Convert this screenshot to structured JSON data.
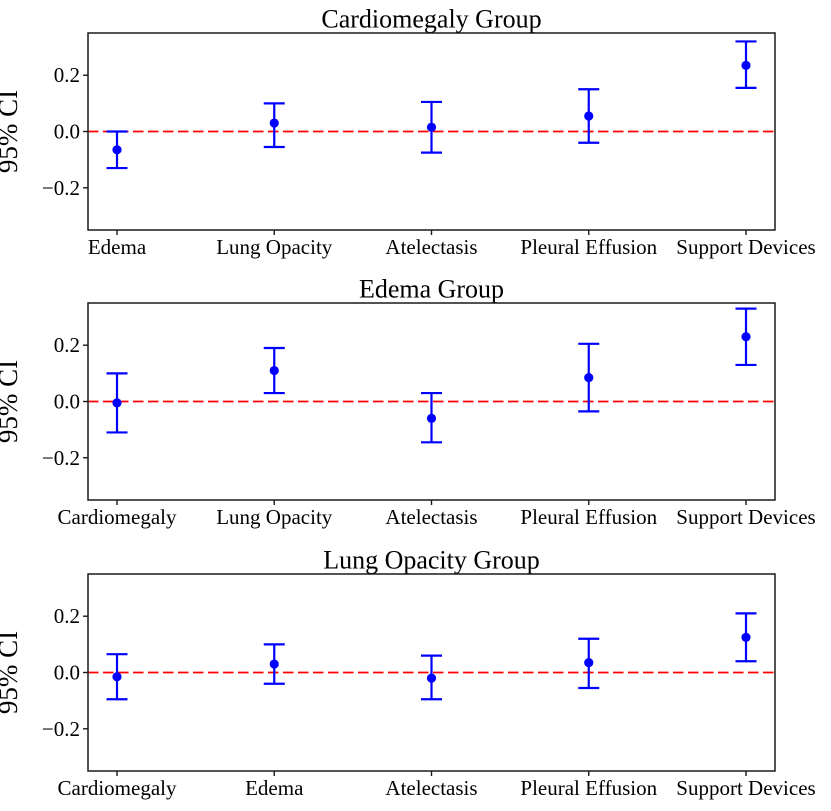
{
  "figure": {
    "background": "#ffffff",
    "text_color": "#000000"
  },
  "chart_data": [
    {
      "type": "scatter",
      "title": "Cardiomegaly Group",
      "ylabel": "95% CI",
      "xlabel": "",
      "categories": [
        "Edema",
        "Lung Opacity",
        "Atelectasis",
        "Pleural Effusion",
        "Support Devices"
      ],
      "series": [
        {
          "name": "point estimate with 95% CI",
          "values": [
            -0.065,
            0.03,
            0.015,
            0.055,
            0.235
          ],
          "ci_low": [
            -0.13,
            -0.055,
            -0.075,
            -0.04,
            0.155
          ],
          "ci_high": [
            0.0,
            0.1,
            0.105,
            0.15,
            0.32
          ]
        }
      ],
      "ylim": [
        -0.35,
        0.35
      ],
      "yticks": [
        -0.2,
        0.0,
        0.2
      ],
      "ytick_labels": [
        "−0.2",
        "0.0",
        "0.2"
      ],
      "refline_y": 0.0,
      "grid": false,
      "legend": false,
      "colors": {
        "point": "#0000ff",
        "refline": "#ff0000",
        "axis": "#1a1a1a"
      }
    },
    {
      "type": "scatter",
      "title": "Edema Group",
      "ylabel": "95% CI",
      "xlabel": "",
      "categories": [
        "Cardiomegaly",
        "Lung Opacity",
        "Atelectasis",
        "Pleural Effusion",
        "Support Devices"
      ],
      "series": [
        {
          "name": "point estimate with 95% CI",
          "values": [
            -0.005,
            0.11,
            -0.06,
            0.085,
            0.23
          ],
          "ci_low": [
            -0.11,
            0.03,
            -0.145,
            -0.035,
            0.13
          ],
          "ci_high": [
            0.1,
            0.19,
            0.03,
            0.205,
            0.33
          ]
        }
      ],
      "ylim": [
        -0.35,
        0.35
      ],
      "yticks": [
        -0.2,
        0.0,
        0.2
      ],
      "ytick_labels": [
        "−0.2",
        "0.0",
        "0.2"
      ],
      "refline_y": 0.0,
      "grid": false,
      "legend": false,
      "colors": {
        "point": "#0000ff",
        "refline": "#ff0000",
        "axis": "#1a1a1a"
      }
    },
    {
      "type": "scatter",
      "title": "Lung Opacity Group",
      "ylabel": "95% CI",
      "xlabel": "",
      "categories": [
        "Cardiomegaly",
        "Edema",
        "Atelectasis",
        "Pleural Effusion",
        "Support Devices"
      ],
      "series": [
        {
          "name": "point estimate with 95% CI",
          "values": [
            -0.015,
            0.03,
            -0.02,
            0.035,
            0.125
          ],
          "ci_low": [
            -0.095,
            -0.04,
            -0.095,
            -0.055,
            0.04
          ],
          "ci_high": [
            0.065,
            0.1,
            0.06,
            0.12,
            0.21
          ]
        }
      ],
      "ylim": [
        -0.35,
        0.35
      ],
      "yticks": [
        -0.2,
        0.0,
        0.2
      ],
      "ytick_labels": [
        "−0.2",
        "0.0",
        "0.2"
      ],
      "refline_y": 0.0,
      "grid": false,
      "legend": false,
      "colors": {
        "point": "#0000ff",
        "refline": "#ff0000",
        "axis": "#1a1a1a"
      }
    }
  ]
}
